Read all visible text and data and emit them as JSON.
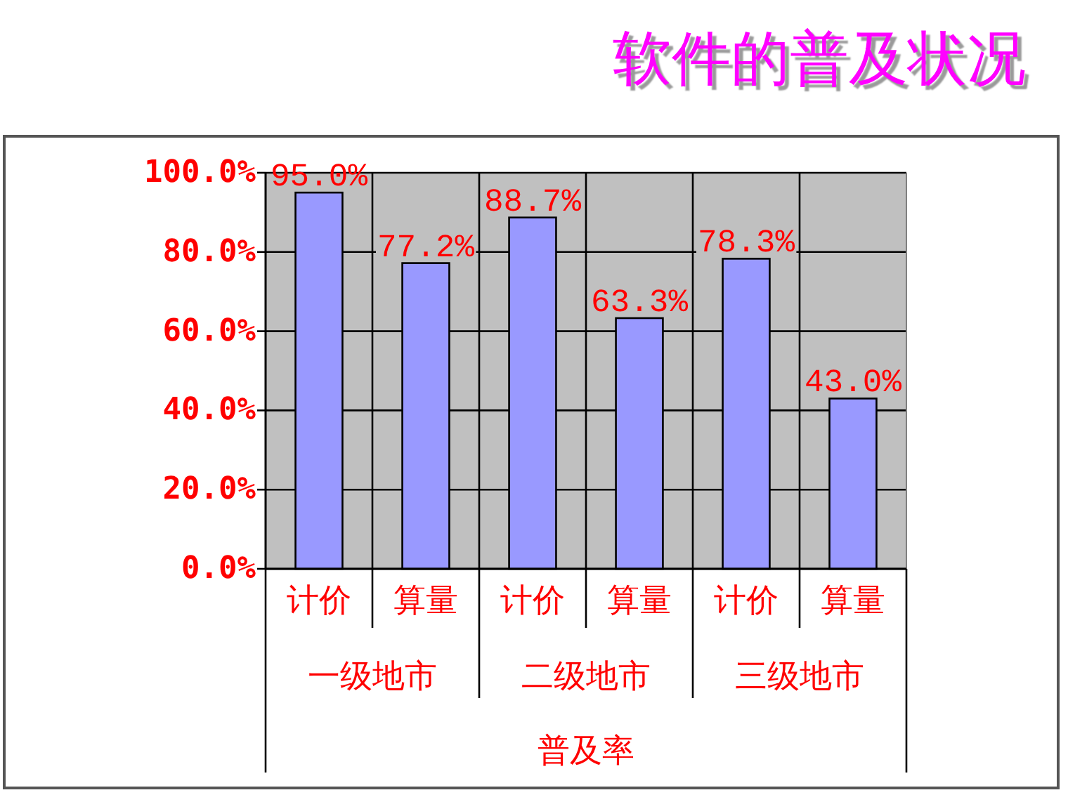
{
  "chart_data": {
    "type": "bar",
    "title": "软件的普及状况",
    "xlabel": "普及率",
    "categories": [
      "计价",
      "算量",
      "计价",
      "算量",
      "计价",
      "算量"
    ],
    "values": [
      95.0,
      77.2,
      88.7,
      63.3,
      78.3,
      43.0
    ],
    "value_labels": [
      "95.0%",
      "77.2%",
      "88.7%",
      "63.3%",
      "78.3%",
      "43.0%"
    ],
    "color": "#9999ff",
    "ylim": [
      0,
      100
    ],
    "yticks": [
      {
        "value": 0,
        "label": "0.0%"
      },
      {
        "value": 20,
        "label": "20.0%"
      },
      {
        "value": 40,
        "label": "40.0%"
      },
      {
        "value": 60,
        "label": "60.0%"
      },
      {
        "value": 80,
        "label": "80.0%"
      },
      {
        "value": 100,
        "label": "100.0%"
      }
    ],
    "annotations": [
      "一级地市",
      "二级地市",
      "三级地市"
    ],
    "grid": true
  }
}
